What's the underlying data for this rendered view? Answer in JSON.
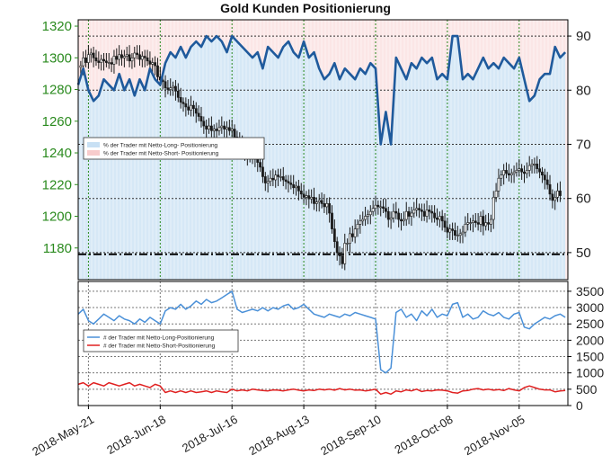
{
  "chart_data": [
    {
      "type": "candlestick+line",
      "title": "Gold Kunden Positionierung",
      "price_axis": {
        "side": "left",
        "ticks": [
          "1320",
          "1300",
          "1280",
          "1260",
          "1240",
          "1220",
          "1200",
          "1180"
        ],
        "ylim": [
          1160,
          1324
        ],
        "color": "#2a8a1e"
      },
      "pct_axis": {
        "side": "right",
        "ticks": [
          "90",
          "80",
          "70",
          "60",
          "50"
        ],
        "ylim": [
          45,
          93
        ]
      },
      "x_ticks": [
        "2018-May-21",
        "2018-Jun-18",
        "2018-Jul-16",
        "2018-Aug-13",
        "2018-Sep-10",
        "2018-Oct-08",
        "2018-Nov-05"
      ],
      "x_tick_days": [
        0,
        28,
        56,
        84,
        112,
        140,
        168
      ],
      "x_range_days": [
        -4,
        187
      ],
      "legend": {
        "placement": "left",
        "entries": [
          {
            "label": "% der Trader mit Netto-Long- Positionierung",
            "color": "#c8e0f4"
          },
          {
            "label": "% der Trader mit Netto-Short- Positionierung",
            "color": "#f8cccc"
          }
        ]
      },
      "reference_line": {
        "value": 1176,
        "style": "dash-dot"
      },
      "series": [
        {
          "name": "% der Trader mit Netto-Long- Positionierung",
          "color": "#1f5a9c",
          "x_days": [
            -4,
            -2,
            0,
            2,
            4,
            6,
            8,
            10,
            12,
            14,
            16,
            18,
            20,
            22,
            24,
            26,
            28,
            30,
            32,
            34,
            36,
            38,
            40,
            42,
            44,
            46,
            48,
            50,
            52,
            54,
            56,
            58,
            60,
            62,
            64,
            66,
            68,
            70,
            72,
            74,
            76,
            78,
            80,
            82,
            84,
            86,
            88,
            90,
            92,
            94,
            96,
            98,
            100,
            102,
            104,
            106,
            108,
            110,
            112,
            114,
            116,
            118,
            120,
            122,
            124,
            126,
            128,
            130,
            132,
            134,
            136,
            138,
            140,
            142,
            144,
            146,
            148,
            150,
            152,
            154,
            156,
            158,
            160,
            162,
            164,
            166,
            168,
            170,
            172,
            174,
            176,
            178,
            180,
            182,
            184,
            186
          ],
          "values": [
            81,
            84,
            80,
            78,
            79,
            82,
            81,
            80,
            83,
            80,
            82,
            79,
            82,
            80,
            84,
            82,
            81,
            85,
            87,
            86,
            88,
            86,
            88,
            89,
            88,
            90,
            89,
            90,
            89,
            87,
            90,
            89,
            88,
            87,
            86,
            87,
            84,
            88,
            87,
            86,
            88,
            89,
            87,
            86,
            89,
            86,
            87,
            84,
            82,
            83,
            85,
            82,
            84,
            83,
            82,
            84,
            83,
            85,
            84,
            70,
            76,
            70,
            86,
            84,
            82,
            85,
            84,
            86,
            85,
            86,
            82,
            83,
            82,
            90,
            90,
            82,
            83,
            82,
            84,
            86,
            84,
            85,
            84,
            86,
            85,
            84,
            86,
            82,
            78,
            79,
            82,
            83,
            83,
            88,
            86,
            87
          ]
        }
      ],
      "ohlc": {
        "x_start_day": -3,
        "x_step_days": 1,
        "close": [
          1295,
          1300,
          1297,
          1302,
          1303,
          1300,
          1298,
          1297,
          1299,
          1298,
          1297,
          1297,
          1296,
          1301,
          1299,
          1302,
          1300,
          1301,
          1302,
          1298,
          1300,
          1303,
          1302,
          1299,
          1301,
          1300,
          1298,
          1296,
          1297,
          1295,
          1288,
          1286,
          1285,
          1281,
          1280,
          1281,
          1282,
          1279,
          1275,
          1272,
          1271,
          1269,
          1267,
          1270,
          1268,
          1265,
          1263,
          1260,
          1257,
          1255,
          1257,
          1254,
          1255,
          1254,
          1256,
          1257,
          1255,
          1256,
          1254,
          1255,
          1250,
          1248,
          1245,
          1243,
          1240,
          1238,
          1237,
          1238,
          1236,
          1234,
          1231,
          1225,
          1221,
          1222,
          1224,
          1223,
          1226,
          1225,
          1225,
          1223,
          1222,
          1221,
          1220,
          1218,
          1219,
          1216,
          1214,
          1212,
          1213,
          1211,
          1212,
          1208,
          1209,
          1210,
          1208,
          1206,
          1208,
          1202,
          1192,
          1184,
          1177,
          1175,
          1170,
          1183,
          1183,
          1189,
          1187,
          1192,
          1195,
          1197,
          1198,
          1200,
          1201,
          1203,
          1205,
          1207,
          1206,
          1206,
          1205,
          1203,
          1198,
          1199,
          1203,
          1202,
          1198,
          1197,
          1198,
          1203,
          1200,
          1202,
          1204,
          1205,
          1204,
          1203,
          1200,
          1204,
          1203,
          1202,
          1199,
          1198,
          1200,
          1197,
          1193,
          1190,
          1192,
          1191,
          1188,
          1188,
          1189,
          1190,
          1195,
          1196,
          1196,
          1197,
          1196,
          1195,
          1200,
          1194,
          1196,
          1195,
          1198,
          1212,
          1216,
          1224,
          1226,
          1229,
          1227,
          1226,
          1227,
          1228,
          1229,
          1230,
          1228,
          1227,
          1229,
          1232,
          1233,
          1233,
          1230,
          1228,
          1226,
          1223,
          1220,
          1214,
          1210,
          1212,
          1216,
          1213
        ],
        "up_color": "#1a1a1a"
      }
    },
    {
      "type": "line",
      "y_axis": {
        "side": "right",
        "ticks": [
          "3500",
          "3000",
          "2500",
          "2000",
          "1500",
          "1000",
          "500",
          "0"
        ],
        "ylim": [
          0,
          3800
        ]
      },
      "legend": {
        "placement": "left",
        "entries": [
          {
            "label": "# der Trader mit Netto-Long-Positionierung",
            "color": "#4a90d8"
          },
          {
            "label": "# der Trader mit Netto-Short-Positionierung",
            "color": "#e02020"
          }
        ]
      },
      "series": [
        {
          "name": "# der Trader mit Netto-Long-Positionierung",
          "color": "#4a90d8",
          "x_days": [
            -4,
            -2,
            0,
            2,
            4,
            6,
            8,
            10,
            12,
            14,
            16,
            18,
            20,
            22,
            24,
            26,
            28,
            30,
            32,
            34,
            36,
            38,
            40,
            42,
            44,
            46,
            48,
            50,
            52,
            54,
            56,
            58,
            60,
            62,
            64,
            66,
            68,
            70,
            72,
            74,
            76,
            78,
            80,
            82,
            84,
            86,
            88,
            90,
            92,
            94,
            96,
            98,
            100,
            102,
            104,
            106,
            108,
            110,
            112,
            114,
            116,
            118,
            120,
            122,
            124,
            126,
            128,
            130,
            132,
            134,
            136,
            138,
            140,
            142,
            144,
            146,
            148,
            150,
            152,
            154,
            156,
            158,
            160,
            162,
            164,
            166,
            168,
            170,
            172,
            174,
            176,
            178,
            180,
            182,
            184,
            186
          ],
          "values": [
            2800,
            2950,
            2600,
            2500,
            2650,
            2800,
            2700,
            2600,
            2750,
            2650,
            2600,
            2500,
            2650,
            2550,
            2700,
            2600,
            2500,
            2900,
            3000,
            2950,
            3100,
            2950,
            3050,
            3200,
            3100,
            3250,
            3150,
            3200,
            3300,
            3400,
            3500,
            2950,
            2850,
            2900,
            2950,
            2900,
            3000,
            2900,
            3000,
            2950,
            3050,
            3100,
            2950,
            3000,
            3100,
            2950,
            2800,
            2750,
            2700,
            2800,
            2750,
            2700,
            2800,
            2750,
            2850,
            2800,
            2750,
            2700,
            2650,
            1100,
            1000,
            1150,
            2850,
            2950,
            2700,
            2800,
            2600,
            2900,
            2750,
            2950,
            2700,
            2800,
            2750,
            3100,
            3150,
            2700,
            2800,
            2650,
            2700,
            2900,
            2800,
            2750,
            2850,
            2700,
            2650,
            2800,
            2850,
            2400,
            2350,
            2500,
            2600,
            2700,
            2650,
            2750,
            2800,
            2700
          ]
        },
        {
          "name": "# der Trader mit Netto-Short-Positionierung",
          "color": "#e02020",
          "x_days": [
            -4,
            -2,
            0,
            2,
            4,
            6,
            8,
            10,
            12,
            14,
            16,
            18,
            20,
            22,
            24,
            26,
            28,
            30,
            32,
            34,
            36,
            38,
            40,
            42,
            44,
            46,
            48,
            50,
            52,
            54,
            56,
            58,
            60,
            62,
            64,
            66,
            68,
            70,
            72,
            74,
            76,
            78,
            80,
            82,
            84,
            86,
            88,
            90,
            92,
            94,
            96,
            98,
            100,
            102,
            104,
            106,
            108,
            110,
            112,
            114,
            116,
            118,
            120,
            122,
            124,
            126,
            128,
            130,
            132,
            134,
            136,
            138,
            140,
            142,
            144,
            146,
            148,
            150,
            152,
            154,
            156,
            158,
            160,
            162,
            164,
            166,
            168,
            170,
            172,
            174,
            176,
            178,
            180,
            182,
            184,
            186
          ],
          "values": [
            650,
            700,
            600,
            700,
            650,
            600,
            700,
            650,
            600,
            650,
            700,
            600,
            650,
            600,
            550,
            650,
            600,
            400,
            450,
            400,
            450,
            400,
            450,
            400,
            420,
            450,
            400,
            450,
            420,
            400,
            500,
            450,
            480,
            450,
            500,
            480,
            460,
            450,
            480,
            470,
            450,
            480,
            500,
            470,
            450,
            480,
            460,
            500,
            480,
            500,
            470,
            520,
            480,
            500,
            470,
            480,
            450,
            470,
            500,
            350,
            400,
            350,
            450,
            420,
            480,
            450,
            500,
            430,
            460,
            450,
            480,
            470,
            450,
            400,
            380,
            450,
            460,
            500,
            520,
            480,
            500,
            470,
            490,
            460,
            520,
            480,
            450,
            550,
            600,
            550,
            500,
            480,
            480,
            420,
            450,
            460
          ]
        }
      ]
    }
  ]
}
